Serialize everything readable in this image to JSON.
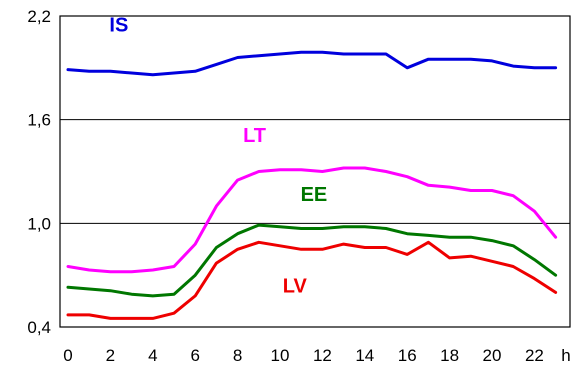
{
  "chart_data": {
    "type": "line",
    "xlabel": "",
    "ylabel": "",
    "x_unit": "h",
    "xlim": [
      0,
      24
    ],
    "ylim": [
      0.4,
      2.2
    ],
    "y_ticks": [
      0.4,
      1.0,
      1.6,
      2.2
    ],
    "y_tick_labels": [
      "0,4",
      "1,0",
      "1,6",
      "2,2"
    ],
    "x_ticks": [
      0,
      2,
      4,
      6,
      8,
      10,
      12,
      14,
      16,
      18,
      20,
      22
    ],
    "x_tick_labels": [
      "0",
      "2",
      "4",
      "6",
      "8",
      "10",
      "12",
      "14",
      "16",
      "18",
      "20",
      "22"
    ],
    "grid": true,
    "legend": "none",
    "series": [
      {
        "name": "IS",
        "color": "#0000dd",
        "label_pos": [
          2.4,
          2.11
        ],
        "x": [
          0,
          1,
          2,
          3,
          4,
          5,
          6,
          7,
          8,
          9,
          10,
          11,
          12,
          13,
          14,
          15,
          16,
          17,
          18,
          19,
          20,
          21,
          22,
          23
        ],
        "y": [
          1.89,
          1.88,
          1.88,
          1.87,
          1.86,
          1.87,
          1.88,
          1.92,
          1.96,
          1.97,
          1.98,
          1.99,
          1.99,
          1.98,
          1.98,
          1.98,
          1.9,
          1.95,
          1.95,
          1.95,
          1.94,
          1.91,
          1.9,
          1.9
        ]
      },
      {
        "name": "LT",
        "color": "#ff00ff",
        "label_pos": [
          8.8,
          1.47
        ],
        "x": [
          0,
          1,
          2,
          3,
          4,
          5,
          6,
          7,
          8,
          9,
          10,
          11,
          12,
          13,
          14,
          15,
          16,
          17,
          18,
          19,
          20,
          21,
          22,
          23
        ],
        "y": [
          0.75,
          0.73,
          0.72,
          0.72,
          0.73,
          0.75,
          0.88,
          1.1,
          1.25,
          1.3,
          1.31,
          1.31,
          1.3,
          1.32,
          1.32,
          1.3,
          1.27,
          1.22,
          1.21,
          1.19,
          1.19,
          1.16,
          1.07,
          0.92
        ]
      },
      {
        "name": "EE",
        "color": "#007700",
        "label_pos": [
          11.6,
          1.13
        ],
        "x": [
          0,
          1,
          2,
          3,
          4,
          5,
          6,
          7,
          8,
          9,
          10,
          11,
          12,
          13,
          14,
          15,
          16,
          17,
          18,
          19,
          20,
          21,
          22,
          23
        ],
        "y": [
          0.63,
          0.62,
          0.61,
          0.59,
          0.58,
          0.59,
          0.7,
          0.86,
          0.94,
          0.99,
          0.98,
          0.97,
          0.97,
          0.98,
          0.98,
          0.97,
          0.94,
          0.93,
          0.92,
          0.92,
          0.9,
          0.87,
          0.79,
          0.7
        ]
      },
      {
        "name": "LV",
        "color": "#ee0000",
        "label_pos": [
          10.7,
          0.6
        ],
        "x": [
          0,
          1,
          2,
          3,
          4,
          5,
          6,
          7,
          8,
          9,
          10,
          11,
          12,
          13,
          14,
          15,
          16,
          17,
          18,
          19,
          20,
          21,
          22,
          23
        ],
        "y": [
          0.47,
          0.47,
          0.45,
          0.45,
          0.45,
          0.48,
          0.58,
          0.77,
          0.85,
          0.89,
          0.87,
          0.85,
          0.85,
          0.88,
          0.86,
          0.86,
          0.82,
          0.89,
          0.8,
          0.81,
          0.78,
          0.75,
          0.68,
          0.6
        ]
      }
    ]
  }
}
